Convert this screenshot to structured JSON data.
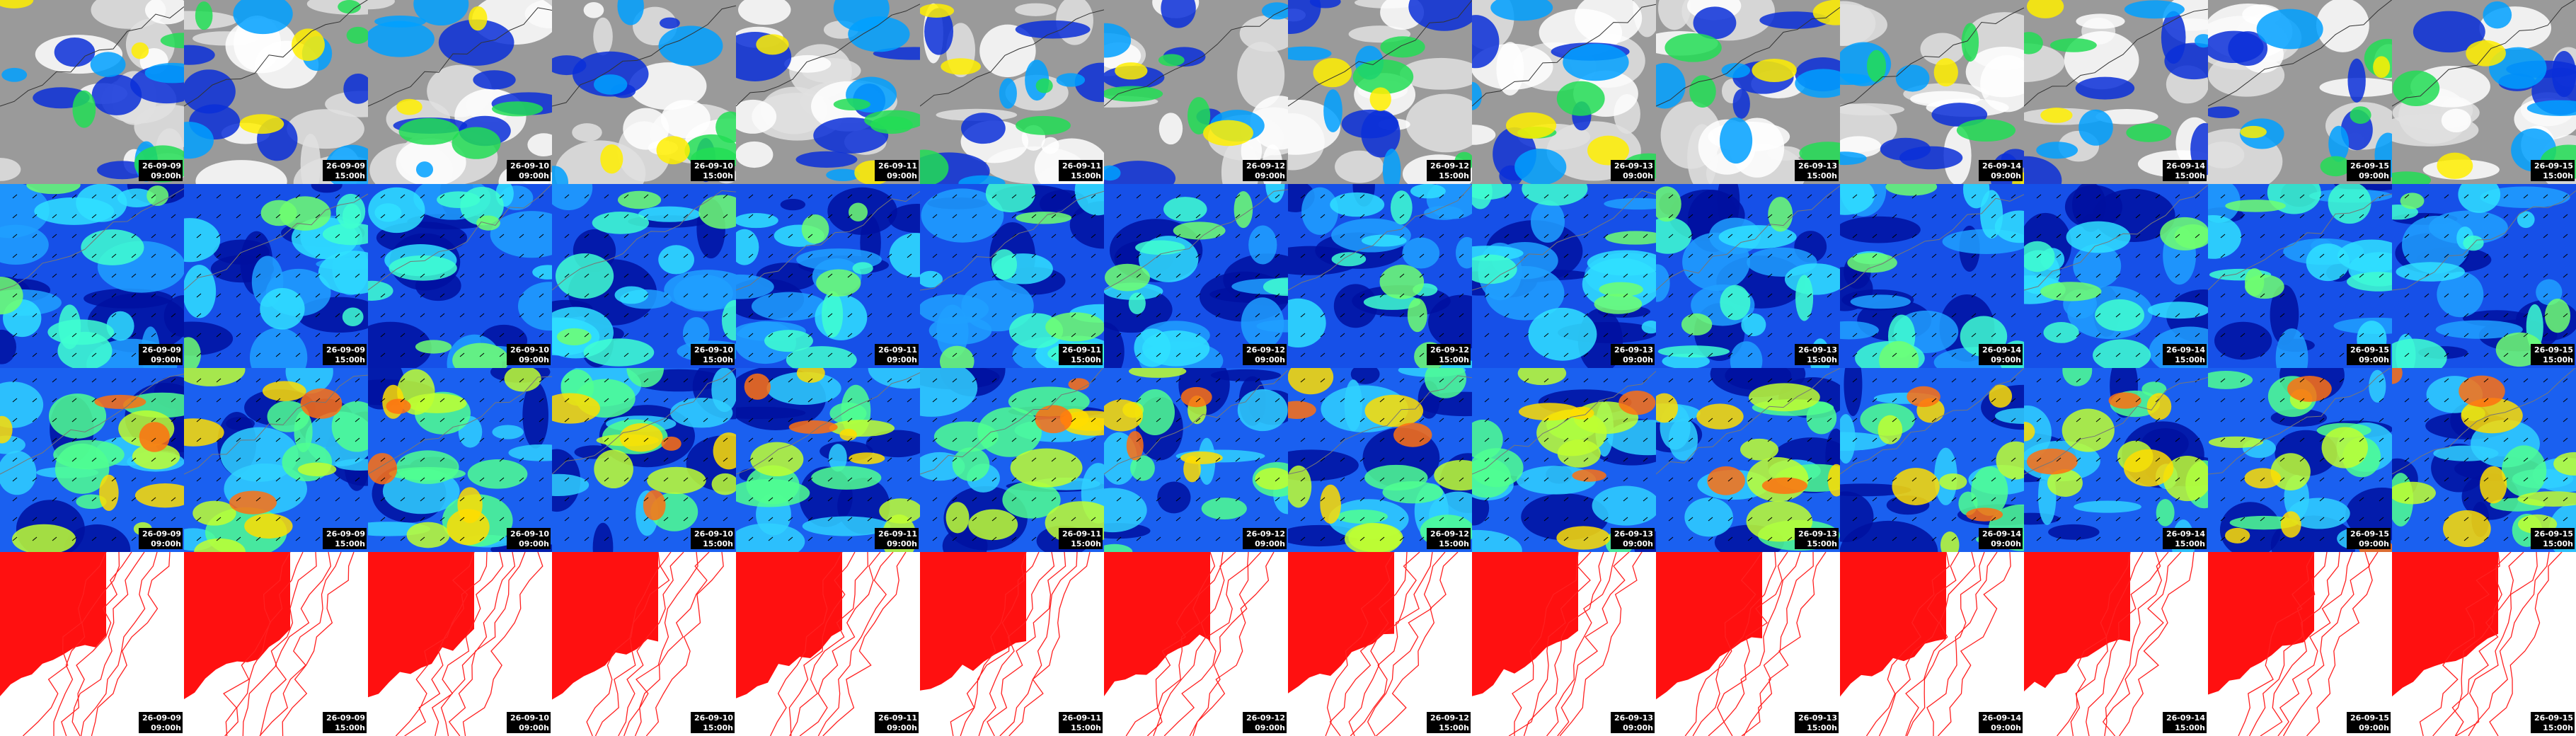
{
  "panels": [
    [
      {
        "date": "26-09-09",
        "time": "09:00h"
      },
      {
        "date": "26-09-09",
        "time": "15:00h"
      },
      {
        "date": "26-09-10",
        "time": "09:00h"
      },
      {
        "date": "26-09-10",
        "time": "15:00h"
      },
      {
        "date": "26-09-11",
        "time": "09:00h"
      },
      {
        "date": "26-09-11",
        "time": "15:00h"
      },
      {
        "date": "26-09-12",
        "time": "09:00h"
      },
      {
        "date": "26-09-12",
        "time": "15:00h"
      },
      {
        "date": "26-09-13",
        "time": "09:00h"
      },
      {
        "date": "26-09-13",
        "time": "15:00h"
      },
      {
        "date": "26-09-14",
        "time": "09:00h"
      },
      {
        "date": "26-09-14",
        "time": "15:00h"
      },
      {
        "date": "26-09-15",
        "time": "09:00h"
      },
      {
        "date": "26-09-15",
        "time": "15:00h"
      }
    ],
    [
      {
        "date": "26-09-09",
        "time": "09:00h"
      },
      {
        "date": "26-09-09",
        "time": "15:00h"
      },
      {
        "date": "26-09-10",
        "time": "09:00h"
      },
      {
        "date": "26-09-10",
        "time": "15:00h"
      },
      {
        "date": "26-09-11",
        "time": "09:00h"
      },
      {
        "date": "26-09-11",
        "time": "15:00h"
      },
      {
        "date": "26-09-12",
        "time": "09:00h"
      },
      {
        "date": "26-09-12",
        "time": "15:00h"
      },
      {
        "date": "26-09-13",
        "time": "09:00h"
      },
      {
        "date": "26-09-13",
        "time": "15:00h"
      },
      {
        "date": "26-09-14",
        "time": "09:00h"
      },
      {
        "date": "26-09-14",
        "time": "15:00h"
      },
      {
        "date": "26-09-15",
        "time": "09:00h"
      },
      {
        "date": "26-09-15",
        "time": "15:00h"
      }
    ],
    [
      {
        "date": "26-09-09",
        "time": "09:00h"
      },
      {
        "date": "26-09-09",
        "time": "15:00h"
      },
      {
        "date": "26-09-10",
        "time": "09:00h"
      },
      {
        "date": "26-09-10",
        "time": "15:00h"
      },
      {
        "date": "26-09-11",
        "time": "09:00h"
      },
      {
        "date": "26-09-11",
        "time": "15:00h"
      },
      {
        "date": "26-09-12",
        "time": "09:00h"
      },
      {
        "date": "26-09-12",
        "time": "15:00h"
      },
      {
        "date": "26-09-13",
        "time": "09:00h"
      },
      {
        "date": "26-09-13",
        "time": "15:00h"
      },
      {
        "date": "26-09-14",
        "time": "09:00h"
      },
      {
        "date": "26-09-14",
        "time": "15:00h"
      },
      {
        "date": "26-09-15",
        "time": "09:00h"
      },
      {
        "date": "26-09-15",
        "time": "15:00h"
      }
    ],
    [
      {
        "date": "26-09-09",
        "time": "09:00h"
      },
      {
        "date": "26-09-09",
        "time": "15:00h"
      },
      {
        "date": "26-09-10",
        "time": "09:00h"
      },
      {
        "date": "26-09-10",
        "time": "15:00h"
      },
      {
        "date": "26-09-11",
        "time": "09:00h"
      },
      {
        "date": "26-09-11",
        "time": "15:00h"
      },
      {
        "date": "26-09-12",
        "time": "09:00h"
      },
      {
        "date": "26-09-12",
        "time": "15:00h"
      },
      {
        "date": "26-09-13",
        "time": "09:00h"
      },
      {
        "date": "26-09-13",
        "time": "15:00h"
      },
      {
        "date": "26-09-14",
        "time": "09:00h"
      },
      {
        "date": "26-09-14",
        "time": "15:00h"
      },
      {
        "date": "26-09-15",
        "time": "09:00h"
      },
      {
        "date": "26-09-15",
        "time": "15:00h"
      }
    ]
  ]
}
